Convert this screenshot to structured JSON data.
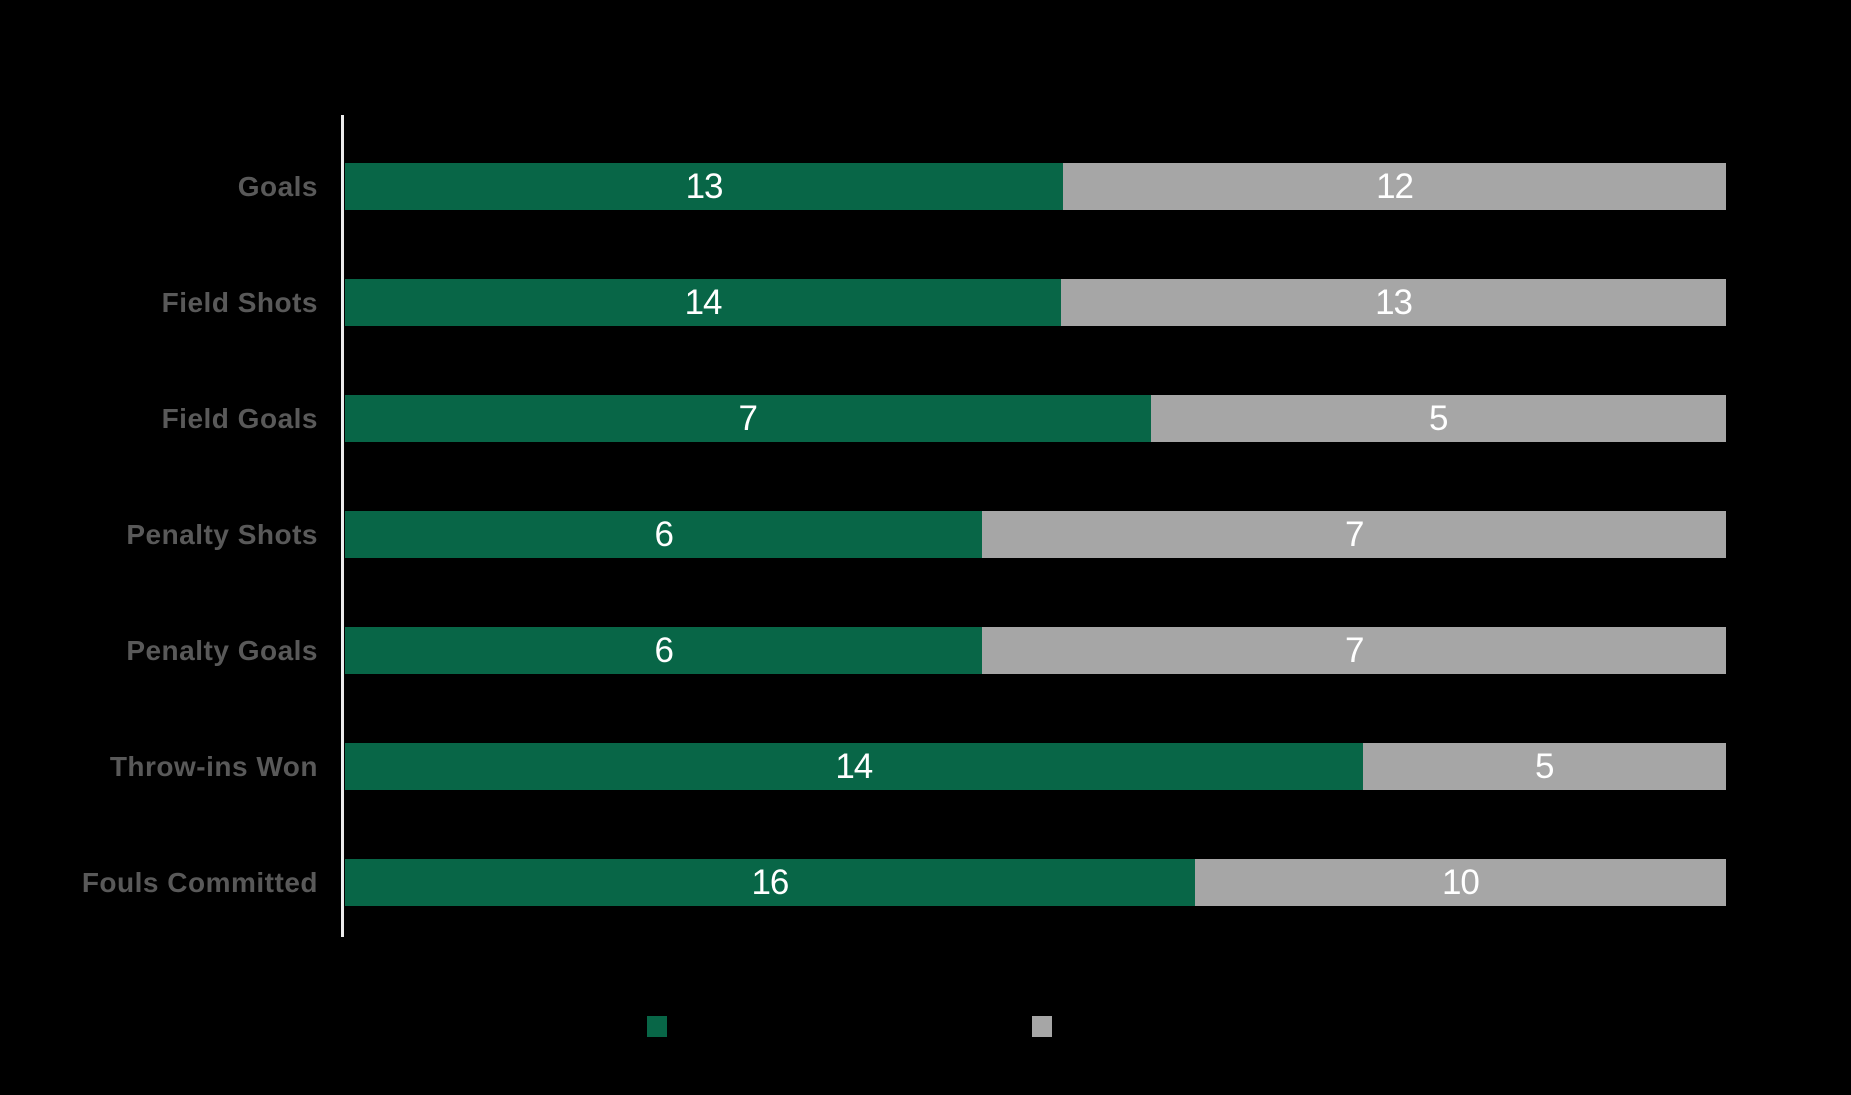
{
  "chart_data": {
    "type": "bar",
    "orientation": "horizontal",
    "stacked": true,
    "normalized_100_percent": true,
    "title": "",
    "xlabel": "",
    "ylabel": "",
    "grid": false,
    "legend_position": "bottom",
    "categories": [
      "Goals",
      "Field Shots",
      "Field Goals",
      "Penalty Shots",
      "Penalty Goals",
      "Throw-ins Won",
      "Fouls Committed"
    ],
    "series": [
      {
        "label": "",
        "color": "#086647",
        "values": [
          13,
          14,
          7,
          6,
          6,
          14,
          16
        ]
      },
      {
        "label": "",
        "color": "#A6A6A6",
        "values": [
          12,
          13,
          5,
          7,
          7,
          5,
          10
        ]
      }
    ],
    "value_labels_visible": true
  },
  "colors": {
    "background": "#000000",
    "series_green": "#086647",
    "series_gray": "#A6A6A6",
    "axis_line": "#ECECEC",
    "category_label_text": "#595959",
    "value_label_text": "#FFFFFF"
  },
  "legend": {
    "items": [
      {
        "swatch_color": "#086647",
        "label": ""
      },
      {
        "swatch_color": "#A6A6A6",
        "label": ""
      }
    ]
  }
}
